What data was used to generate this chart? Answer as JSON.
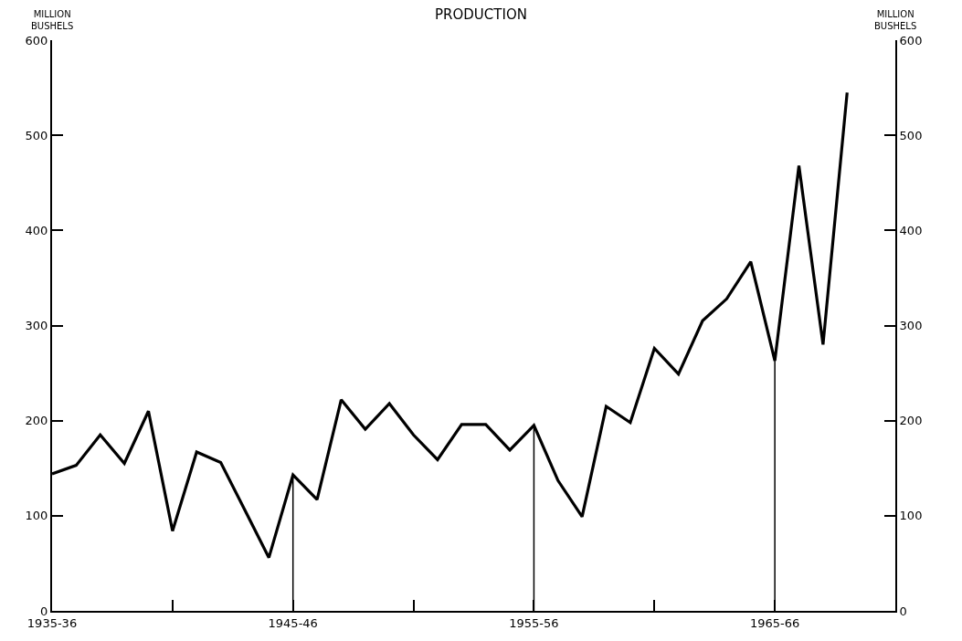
{
  "chart_data": {
    "type": "line",
    "title": "PRODUCTION",
    "ylabel": "MILLION\nBUSHELS",
    "y2label": "MILLION\nBUSHELS",
    "categories": [
      "1935-36",
      null,
      null,
      null,
      null,
      null,
      null,
      null,
      null,
      null,
      "1945-46",
      null,
      null,
      null,
      null,
      null,
      null,
      null,
      null,
      null,
      "1955-56",
      null,
      null,
      null,
      null,
      null,
      null,
      null,
      null,
      null,
      "1965-66",
      null,
      null,
      null,
      null,
      null
    ],
    "series": [
      {
        "color": "#000000",
        "values": [
          144,
          153,
          185,
          155,
          210,
          84,
          167,
          156,
          106,
          56,
          143,
          117,
          222,
          191,
          218,
          185,
          159,
          196,
          196,
          169,
          195,
          137,
          99,
          215,
          198,
          276,
          249,
          305,
          328,
          367,
          263,
          468,
          280,
          545,
          null,
          null
        ]
      }
    ],
    "ylim": [
      0,
      600
    ],
    "yticks": [
      0,
      100,
      200,
      300,
      400,
      500,
      600
    ],
    "y2lim": [
      0,
      600
    ],
    "y2ticks": [
      0,
      100,
      200,
      300,
      400,
      500,
      600
    ],
    "ref_lines": [
      {
        "axis": "x",
        "value": "1945-46"
      },
      {
        "axis": "x",
        "value": "1955-56"
      },
      {
        "axis": "x",
        "value": "1965-66"
      }
    ],
    "marker": "none",
    "line_style": "solid"
  }
}
